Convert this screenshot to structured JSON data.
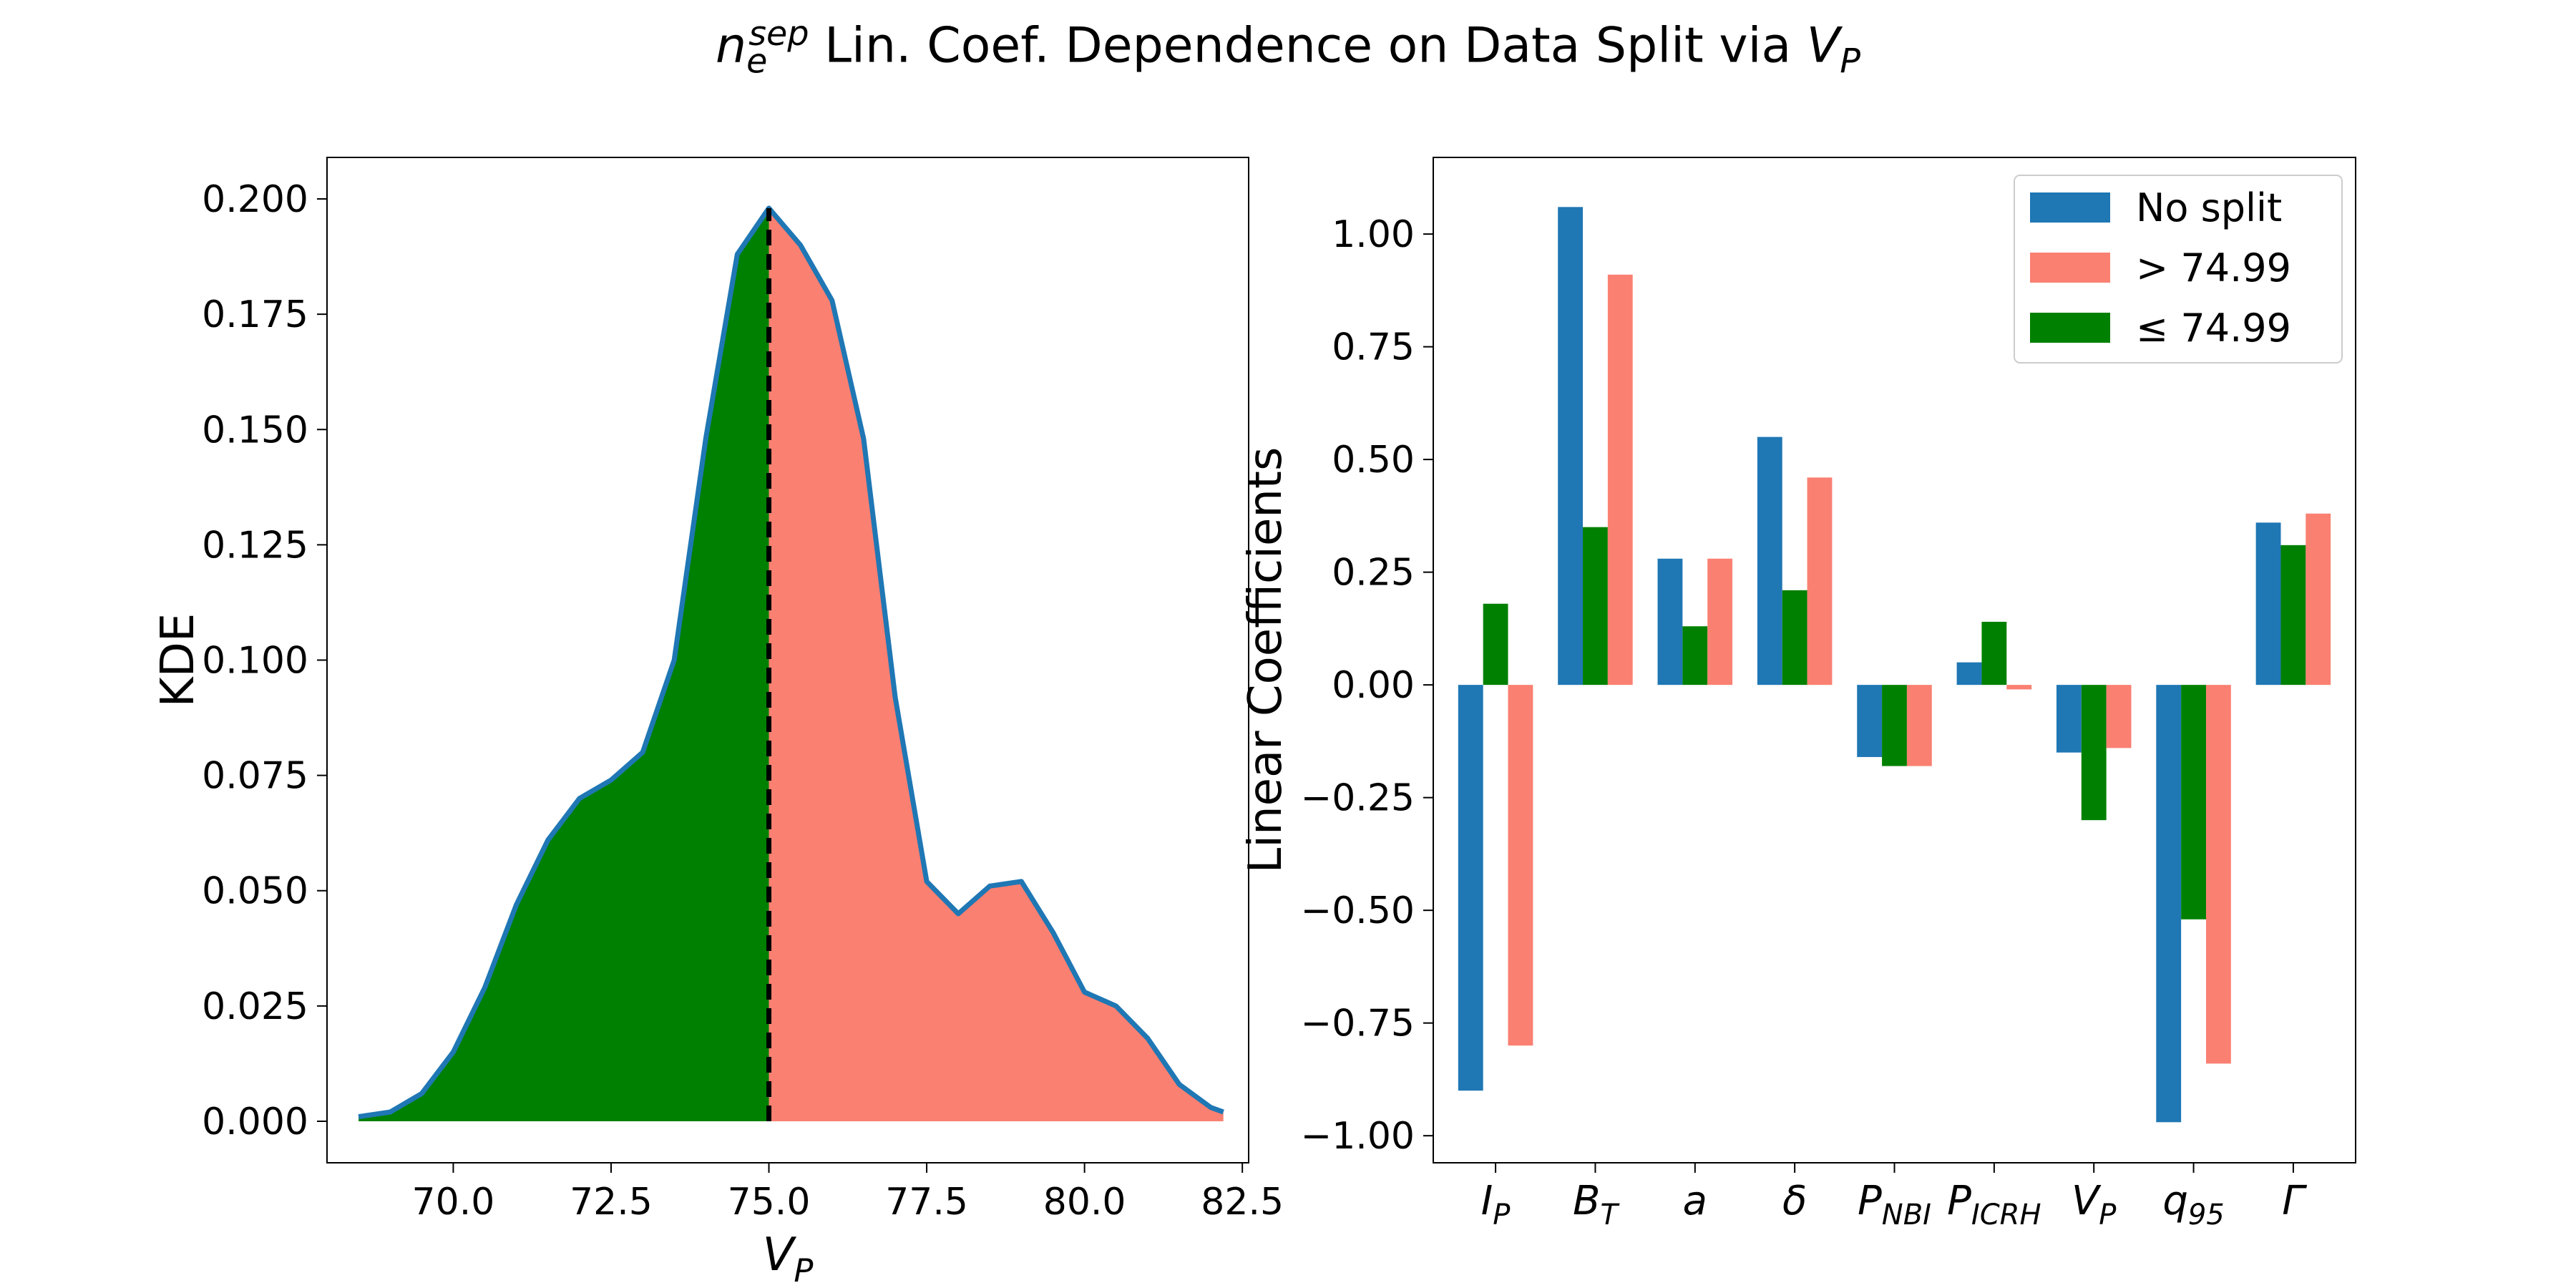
{
  "figure": {
    "title": {
      "symbol": "n",
      "subscript": "e",
      "superscript": "sep",
      "middle": " Lin. Coef. Dependence on Data Split via ",
      "end_symbol": "V",
      "end_subscript": "P"
    }
  },
  "chart_data": [
    {
      "type": "area",
      "xlabel": "V_P",
      "ylabel": "KDE",
      "xlim": [
        68.0,
        82.6
      ],
      "ylim": [
        -0.009,
        0.209
      ],
      "x_ticks": [
        70.0,
        72.5,
        75.0,
        77.5,
        80.0,
        82.5
      ],
      "x_tick_labels": [
        "70.0",
        "72.5",
        "75.0",
        "77.5",
        "80.0",
        "82.5"
      ],
      "y_ticks": [
        0.0,
        0.025,
        0.05,
        0.075,
        0.1,
        0.125,
        0.15,
        0.175,
        0.2
      ],
      "y_tick_labels": [
        "0.000",
        "0.025",
        "0.050",
        "0.075",
        "0.100",
        "0.125",
        "0.150",
        "0.175",
        "0.200"
      ],
      "split_value": 75.0,
      "x": [
        68.5,
        69.0,
        69.5,
        70.0,
        70.5,
        71.0,
        71.5,
        72.0,
        72.5,
        73.0,
        73.5,
        74.0,
        74.5,
        75.0,
        75.5,
        76.0,
        76.5,
        77.0,
        77.5,
        78.0,
        78.5,
        79.0,
        79.5,
        80.0,
        80.5,
        81.0,
        81.5,
        82.0,
        82.2
      ],
      "kde": [
        0.001,
        0.002,
        0.006,
        0.015,
        0.029,
        0.047,
        0.061,
        0.07,
        0.074,
        0.08,
        0.1,
        0.148,
        0.188,
        0.198,
        0.19,
        0.178,
        0.148,
        0.092,
        0.052,
        0.045,
        0.051,
        0.052,
        0.041,
        0.028,
        0.025,
        0.018,
        0.008,
        0.003,
        0.002
      ],
      "fill_below_split_color": "#008000",
      "fill_above_split_color": "#fa8072",
      "line_color": "#1f77b4",
      "split_line_color": "#000000",
      "grid": false
    },
    {
      "type": "bar",
      "ylabel": "Linear Coefficients",
      "ylim": [
        -1.06,
        1.17
      ],
      "y_ticks": [
        -1.0,
        -0.75,
        -0.5,
        -0.25,
        0.0,
        0.25,
        0.5,
        0.75,
        1.0
      ],
      "y_tick_labels": [
        "−1.00",
        "−0.75",
        "−0.50",
        "−0.25",
        "0.00",
        "0.25",
        "0.50",
        "0.75",
        "1.00"
      ],
      "categories": [
        {
          "base": "I",
          "sub": "P"
        },
        {
          "base": "B",
          "sub": "T"
        },
        {
          "base": "a",
          "sub": ""
        },
        {
          "base": "δ",
          "sub": ""
        },
        {
          "base": "P",
          "sub": "NBI"
        },
        {
          "base": "P",
          "sub": "ICRH"
        },
        {
          "base": "V",
          "sub": "P"
        },
        {
          "base": "q",
          "sub": "95"
        },
        {
          "base": "Γ",
          "sub": ""
        }
      ],
      "series": [
        {
          "name": "No split",
          "color": "#1f77b4",
          "values": [
            -0.9,
            1.06,
            0.28,
            0.55,
            -0.16,
            0.05,
            -0.15,
            -0.97,
            0.36
          ]
        },
        {
          "name": "> 74.99",
          "color": "#fa8072",
          "values": [
            -0.8,
            0.91,
            0.28,
            0.46,
            -0.18,
            -0.01,
            -0.14,
            -0.84,
            0.38
          ]
        },
        {
          "name": "≤  74.99",
          "color": "#008000",
          "values": [
            0.18,
            0.35,
            0.13,
            0.21,
            -0.18,
            0.14,
            -0.3,
            -0.52,
            0.31
          ]
        }
      ],
      "legend_position": "top-right",
      "grid": false
    }
  ]
}
